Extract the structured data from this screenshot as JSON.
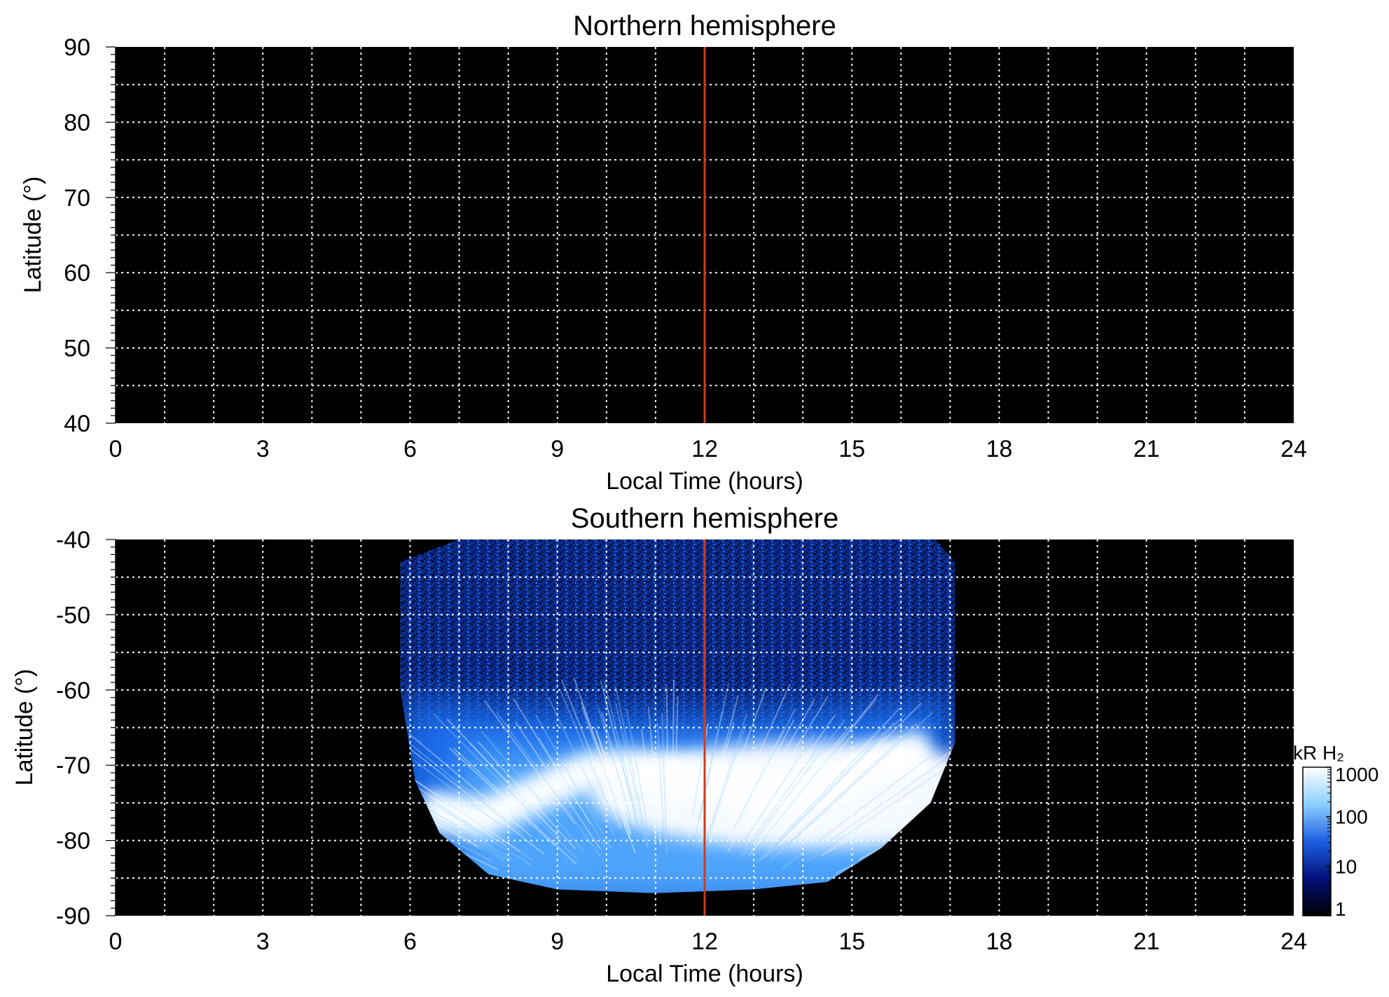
{
  "chart_data": [
    {
      "type": "heatmap",
      "title": "Northern hemisphere",
      "xlabel": "Local Time (hours)",
      "ylabel": "Latitude (°)",
      "xlim": [
        0,
        24
      ],
      "ylim": [
        40,
        90
      ],
      "xticks": [
        "0",
        "3",
        "6",
        "9",
        "12",
        "15",
        "18",
        "21",
        "24"
      ],
      "yticks": [
        "40",
        "50",
        "60",
        "70",
        "80",
        "90"
      ],
      "grid": true,
      "marker_line_x": 12,
      "marker_color": "#d03a1a",
      "background": "#000000",
      "emission": "none"
    },
    {
      "type": "heatmap",
      "title": "Southern hemisphere",
      "xlabel": "Local Time (hours)",
      "ylabel": "Latitude (°)",
      "xlim": [
        0,
        24
      ],
      "ylim": [
        -90,
        -40
      ],
      "xticks": [
        "0",
        "3",
        "6",
        "9",
        "12",
        "15",
        "18",
        "21",
        "24"
      ],
      "yticks": [
        "-40",
        "-50",
        "-60",
        "-70",
        "-80",
        "-90"
      ],
      "grid": true,
      "marker_line_x": 12,
      "marker_color": "#d03a1a",
      "background": "#000000",
      "coverage_local_time": [
        5.8,
        17.1
      ],
      "coverage_min_latitude": -87,
      "auroral_oval": [
        {
          "lt": 6.3,
          "lat": -75.5
        },
        {
          "lt": 7.5,
          "lat": -76.5
        },
        {
          "lt": 8.5,
          "lat": -73.5
        },
        {
          "lt": 9.5,
          "lat": -70.5
        },
        {
          "lt": 10.5,
          "lat": -70
        },
        {
          "lt": 11.5,
          "lat": -71
        },
        {
          "lt": 12.5,
          "lat": -72.5
        },
        {
          "lt": 13.5,
          "lat": -73
        },
        {
          "lt": 14.5,
          "lat": -72.5
        },
        {
          "lt": 15.5,
          "lat": -69
        },
        {
          "lt": 16.5,
          "lat": -67.5
        }
      ],
      "colorbar": {
        "label": "kR H₂",
        "scale": "log",
        "range": [
          1,
          1000
        ],
        "ticks": [
          "1",
          "10",
          "100",
          "1000"
        ],
        "colors": [
          "#000000",
          "#03107a",
          "#1d5fe0",
          "#8ccfff",
          "#ffffff"
        ]
      }
    }
  ]
}
